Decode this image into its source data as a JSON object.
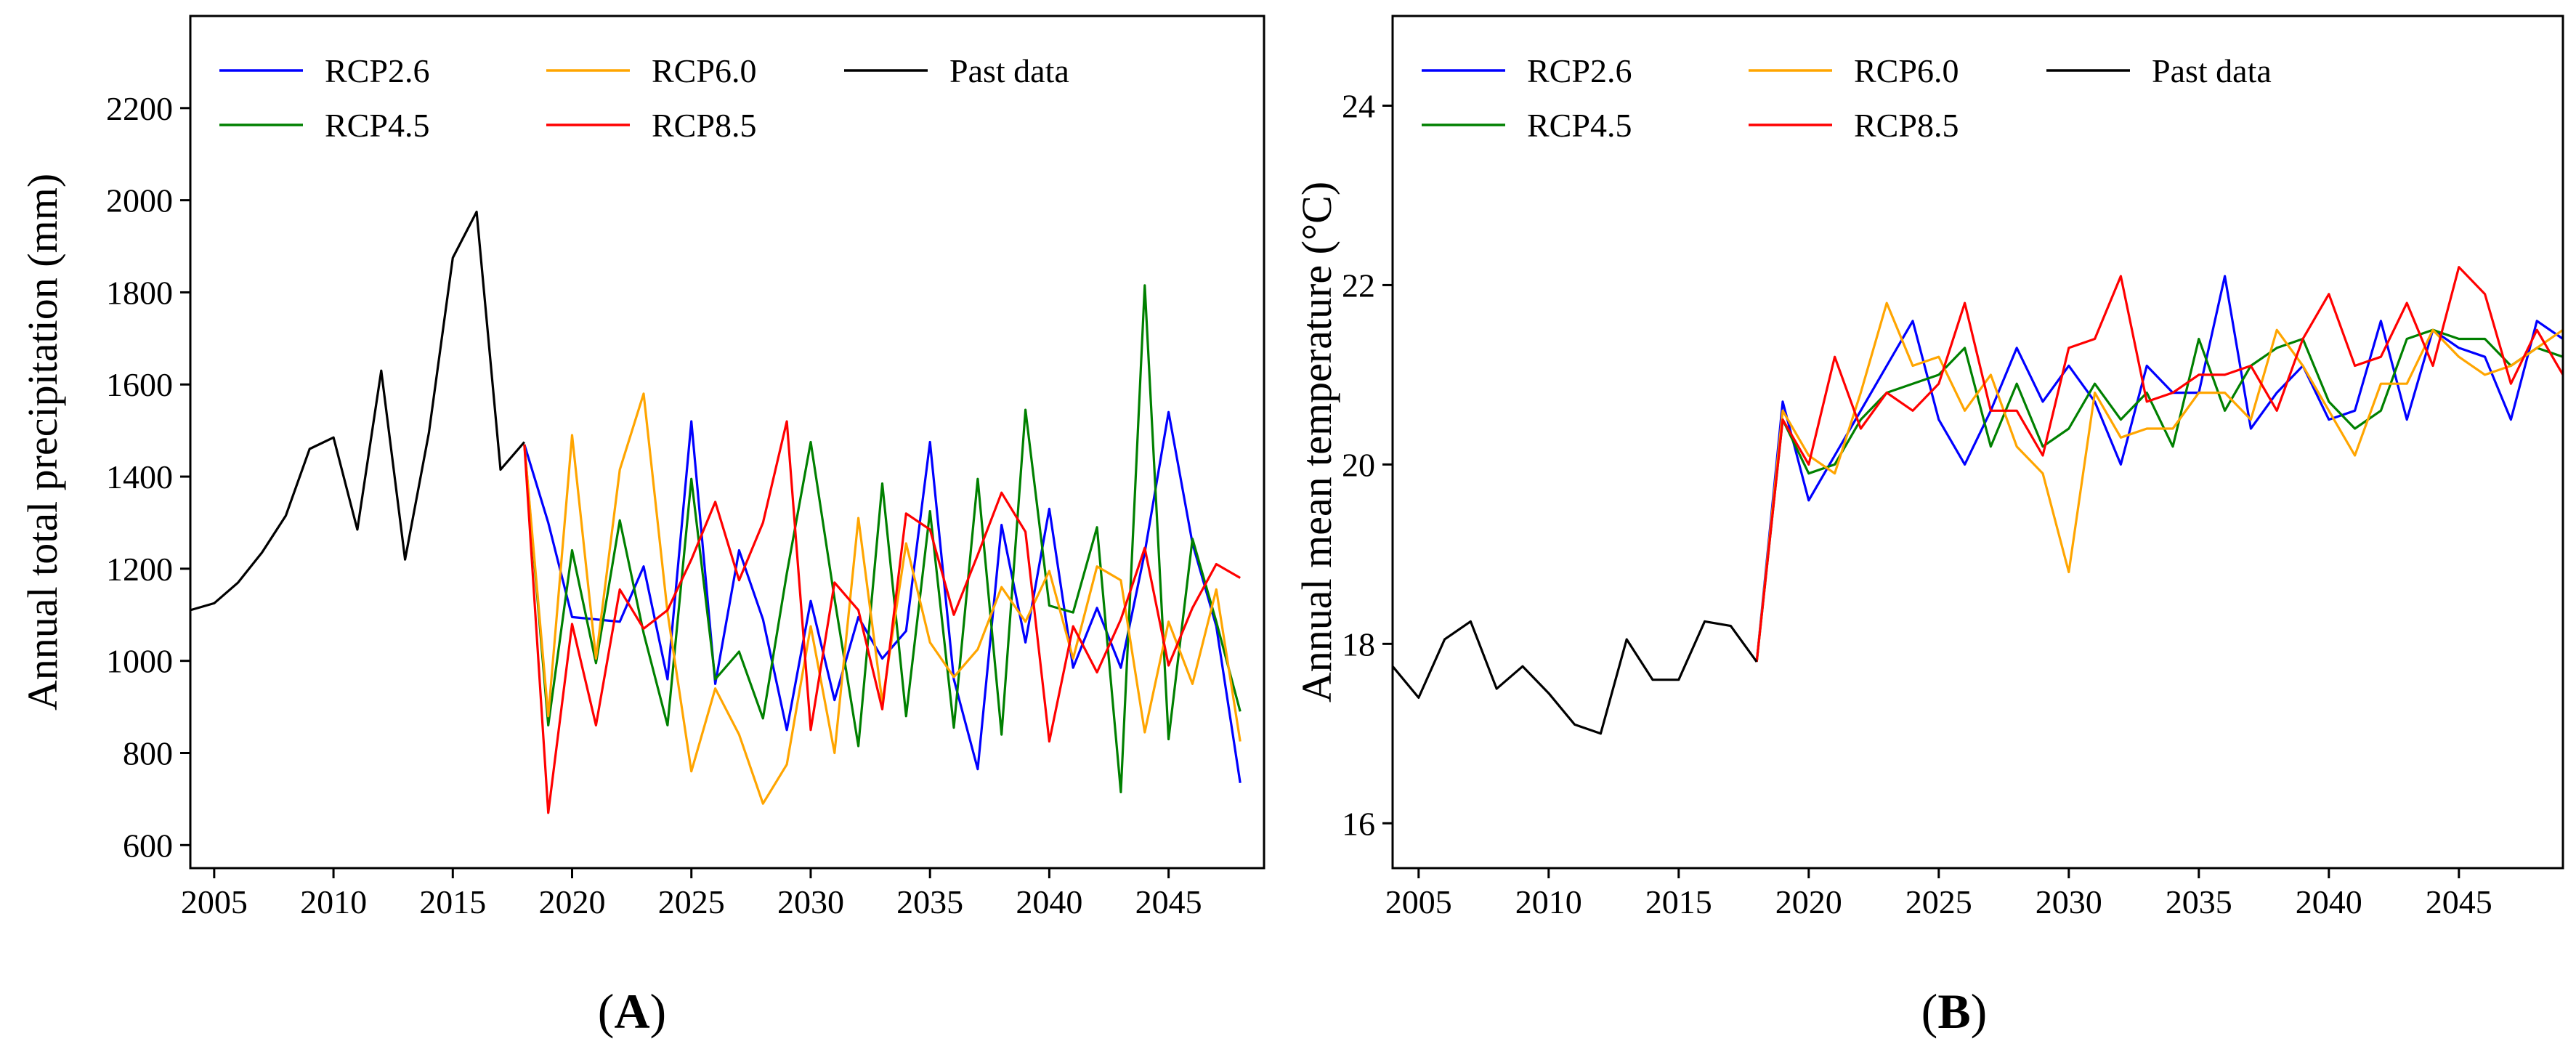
{
  "chart_data": [
    {
      "type": "line",
      "panel_label": "(A)",
      "panel_letter": "A",
      "ylabel": "Annual total precipitation (mm)",
      "xlabel": "",
      "xlim": [
        2004,
        2049
      ],
      "ylim": [
        550,
        2400
      ],
      "xticks": [
        2005,
        2010,
        2015,
        2020,
        2025,
        2030,
        2035,
        2040,
        2045
      ],
      "yticks": [
        600,
        800,
        1000,
        1200,
        1400,
        1600,
        1800,
        2000,
        2200
      ],
      "legend_position": "top-left",
      "series": [
        {
          "name": "RCP2.6",
          "color": "#0000ff",
          "x_start": 2018,
          "values": [
            1470,
            1300,
            1095,
            1090,
            1085,
            1205,
            960,
            1520,
            950,
            1240,
            1090,
            850,
            1130,
            915,
            1095,
            1005,
            1065,
            1475,
            960,
            765,
            1295,
            1040,
            1330,
            985,
            1115,
            985,
            1235,
            1540,
            1255,
            1075,
            735
          ]
        },
        {
          "name": "RCP4.5",
          "color": "#008000",
          "x_start": 2018,
          "values": [
            1470,
            860,
            1240,
            995,
            1305,
            1060,
            860,
            1395,
            960,
            1020,
            875,
            1190,
            1475,
            1135,
            815,
            1385,
            880,
            1325,
            855,
            1395,
            840,
            1545,
            1120,
            1105,
            1290,
            715,
            1815,
            830,
            1265,
            1085,
            890
          ]
        },
        {
          "name": "RCP6.0",
          "color": "#ffa500",
          "x_start": 2018,
          "values": [
            1470,
            880,
            1490,
            1005,
            1415,
            1580,
            1105,
            760,
            940,
            840,
            690,
            775,
            1075,
            800,
            1310,
            910,
            1255,
            1040,
            965,
            1025,
            1160,
            1085,
            1195,
            1005,
            1205,
            1175,
            845,
            1085,
            950,
            1155,
            825
          ]
        },
        {
          "name": "RCP8.5",
          "color": "#ff0000",
          "x_start": 2018,
          "values": [
            1470,
            670,
            1080,
            860,
            1155,
            1070,
            1110,
            1220,
            1345,
            1175,
            1300,
            1520,
            850,
            1170,
            1110,
            895,
            1320,
            1285,
            1100,
            1230,
            1365,
            1280,
            825,
            1075,
            975,
            1090,
            1245,
            990,
            1115,
            1210,
            1180
          ]
        },
        {
          "name": "Past data",
          "color": "#000000",
          "x_start": 2004,
          "values": [
            1110,
            1125,
            1170,
            1235,
            1315,
            1460,
            1485,
            1285,
            1630,
            1220,
            1495,
            1875,
            1975,
            1415,
            1475
          ]
        }
      ]
    },
    {
      "type": "line",
      "panel_label": "(B)",
      "panel_letter": "B",
      "ylabel": "Annual mean temperature (°C)",
      "xlabel": "",
      "xlim": [
        2004,
        2049
      ],
      "ylim": [
        15.5,
        25
      ],
      "xticks": [
        2005,
        2010,
        2015,
        2020,
        2025,
        2030,
        2035,
        2040,
        2045
      ],
      "yticks": [
        16,
        18,
        20,
        22,
        24
      ],
      "legend_position": "top-left",
      "series": [
        {
          "name": "RCP2.6",
          "color": "#0000ff",
          "x_start": 2018,
          "values": [
            17.8,
            20.7,
            19.6,
            20.1,
            20.6,
            21.1,
            21.6,
            20.5,
            20.0,
            20.6,
            21.3,
            20.7,
            21.1,
            20.7,
            20.0,
            21.1,
            20.8,
            20.8,
            22.1,
            20.4,
            20.8,
            21.1,
            20.5,
            20.6,
            21.6,
            20.5,
            21.5,
            21.3,
            21.2,
            20.5,
            21.6,
            21.4
          ]
        },
        {
          "name": "RCP4.5",
          "color": "#008000",
          "x_start": 2018,
          "values": [
            17.8,
            20.5,
            19.9,
            20.0,
            20.5,
            20.8,
            20.9,
            21.0,
            21.3,
            20.2,
            20.9,
            20.2,
            20.4,
            20.9,
            20.5,
            20.8,
            20.2,
            21.4,
            20.6,
            21.1,
            21.3,
            21.4,
            20.7,
            20.4,
            20.6,
            21.4,
            21.5,
            21.4,
            21.4,
            21.1,
            21.3,
            21.2
          ]
        },
        {
          "name": "RCP6.0",
          "color": "#ffa500",
          "x_start": 2018,
          "values": [
            17.8,
            20.6,
            20.1,
            19.9,
            20.8,
            21.8,
            21.1,
            21.2,
            20.6,
            21.0,
            20.2,
            19.9,
            18.8,
            20.8,
            20.3,
            20.4,
            20.4,
            20.8,
            20.8,
            20.5,
            21.5,
            21.1,
            20.6,
            20.1,
            20.9,
            20.9,
            21.5,
            21.2,
            21.0,
            21.1,
            21.3,
            21.5
          ]
        },
        {
          "name": "RCP8.5",
          "color": "#ff0000",
          "x_start": 2018,
          "values": [
            17.8,
            20.5,
            20.0,
            21.2,
            20.4,
            20.8,
            20.6,
            20.9,
            21.8,
            20.6,
            20.6,
            20.1,
            21.3,
            21.4,
            22.1,
            20.7,
            20.8,
            21.0,
            21.0,
            21.1,
            20.6,
            21.4,
            21.9,
            21.1,
            21.2,
            21.8,
            21.1,
            22.2,
            21.9,
            20.9,
            21.5,
            21.0
          ]
        },
        {
          "name": "Past data",
          "color": "#000000",
          "x_start": 2004,
          "values": [
            17.75,
            17.4,
            18.05,
            18.25,
            17.5,
            17.75,
            17.45,
            17.1,
            17.0,
            18.05,
            17.6,
            17.6,
            18.25,
            18.2,
            17.8
          ]
        }
      ]
    }
  ]
}
